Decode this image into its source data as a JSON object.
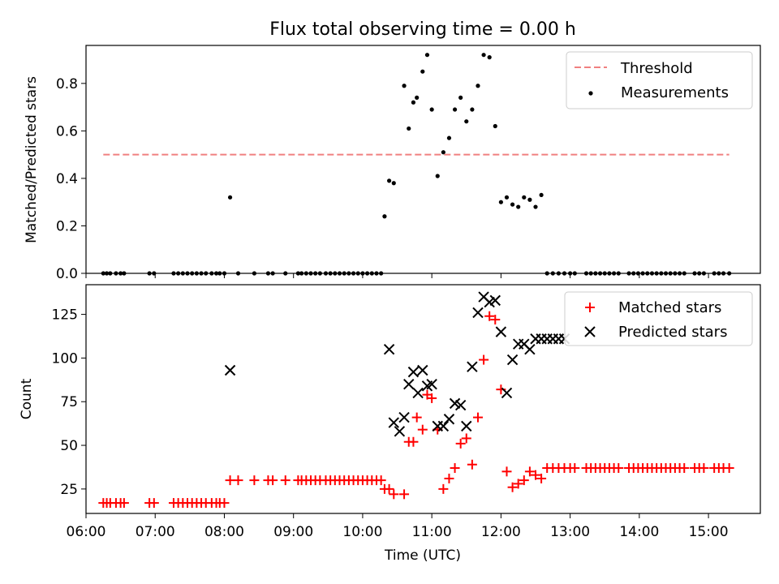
{
  "figure": {
    "title": "Flux total observing time = 0.00 h"
  },
  "chart_data": [
    {
      "type": "scatter",
      "ylabel": "Matched/Predicted stars",
      "xlim": [
        "06:00",
        "15:45"
      ],
      "ylim": [
        0,
        0.96
      ],
      "yticks": [
        "0.0",
        "0.2",
        "0.4",
        "0.6",
        "0.8"
      ],
      "yticks_values": [
        0,
        0.2,
        0.4,
        0.6,
        0.8
      ],
      "legend": {
        "placement": "top-right",
        "entries": [
          "Threshold",
          "Measurements"
        ]
      },
      "threshold": {
        "name": "Threshold",
        "value": 0.5,
        "x_start": "06:15",
        "x_end": "15:18",
        "color": "#f08080"
      },
      "measurements": {
        "name": "Measurements",
        "color": "#000000",
        "x": [
          "06:15",
          "06:18",
          "06:21",
          "06:26",
          "06:30",
          "06:33",
          "06:55",
          "06:59",
          "07:16",
          "07:20",
          "07:24",
          "07:28",
          "07:32",
          "07:36",
          "07:40",
          "07:44",
          "07:49",
          "07:53",
          "07:56",
          "08:00",
          "08:05",
          "08:12",
          "08:26",
          "08:38",
          "08:42",
          "08:53",
          "09:04",
          "09:07",
          "09:11",
          "09:15",
          "09:19",
          "09:23",
          "09:28",
          "09:32",
          "09:36",
          "09:40",
          "09:44",
          "09:48",
          "09:52",
          "09:56",
          "10:00",
          "10:04",
          "10:08",
          "10:12",
          "10:16",
          "10:19",
          "10:23",
          "10:27",
          "10:36",
          "10:40",
          "10:44",
          "10:47",
          "10:52",
          "10:56",
          "11:00",
          "11:05",
          "11:10",
          "11:15",
          "11:20",
          "11:25",
          "11:30",
          "11:35",
          "11:40",
          "11:45",
          "11:50",
          "11:55",
          "12:00",
          "12:05",
          "12:10",
          "12:15",
          "12:20",
          "12:25",
          "12:30",
          "12:35",
          "12:40",
          "12:45",
          "12:50",
          "12:55",
          "13:00",
          "13:04",
          "13:14",
          "13:18",
          "13:22",
          "13:26",
          "13:30",
          "13:34",
          "13:38",
          "13:42",
          "13:51",
          "13:55",
          "13:59",
          "14:03",
          "14:07",
          "14:11",
          "14:15",
          "14:19",
          "14:23",
          "14:27",
          "14:31",
          "14:35",
          "14:39",
          "14:48",
          "14:52",
          "14:56",
          "15:05",
          "15:09",
          "15:13",
          "15:18"
        ],
        "y": [
          0,
          0,
          0,
          0,
          0,
          0,
          0,
          0,
          0,
          0,
          0,
          0,
          0,
          0,
          0,
          0,
          0,
          0,
          0,
          0,
          0.32,
          0,
          0,
          0,
          0,
          0,
          0,
          0,
          0,
          0,
          0,
          0,
          0,
          0,
          0,
          0,
          0,
          0,
          0,
          0,
          0,
          0,
          0,
          0,
          0,
          0.24,
          0.39,
          0.38,
          0.79,
          0.61,
          0.72,
          0.74,
          0.85,
          0.92,
          0.69,
          0.41,
          0.51,
          0.57,
          0.69,
          0.74,
          0.64,
          0.69,
          0.79,
          0.92,
          0.91,
          0.62,
          0.3,
          0.32,
          0.29,
          0.28,
          0.32,
          0.31,
          0.28,
          0.33,
          0,
          0,
          0,
          0,
          0,
          0,
          0,
          0,
          0,
          0,
          0,
          0,
          0,
          0,
          0,
          0,
          0,
          0,
          0,
          0,
          0,
          0,
          0,
          0,
          0,
          0,
          0,
          0,
          0,
          0,
          0,
          0,
          0,
          0
        ]
      }
    },
    {
      "type": "scatter",
      "xlabel": "Time (UTC)",
      "ylabel": "Count",
      "xlim": [
        "06:00",
        "15:45"
      ],
      "ylim": [
        11,
        142
      ],
      "xticks": [
        "06:00",
        "07:00",
        "08:00",
        "09:00",
        "10:00",
        "11:00",
        "12:00",
        "13:00",
        "14:00",
        "15:00"
      ],
      "yticks": [
        "25",
        "50",
        "75",
        "100",
        "125"
      ],
      "yticks_values": [
        25,
        50,
        75,
        100,
        125
      ],
      "legend": {
        "placement": "top-right",
        "entries": [
          "Matched stars",
          "Predicted stars"
        ]
      },
      "series": [
        {
          "name": "Matched stars",
          "marker": "+",
          "color": "#ff0000",
          "x": [
            "06:15",
            "06:18",
            "06:21",
            "06:26",
            "06:30",
            "06:33",
            "06:55",
            "06:59",
            "07:16",
            "07:20",
            "07:24",
            "07:28",
            "07:32",
            "07:36",
            "07:40",
            "07:44",
            "07:49",
            "07:53",
            "07:56",
            "08:00",
            "08:05",
            "08:12",
            "08:26",
            "08:38",
            "08:42",
            "08:53",
            "09:04",
            "09:07",
            "09:11",
            "09:15",
            "09:19",
            "09:23",
            "09:28",
            "09:32",
            "09:36",
            "09:40",
            "09:44",
            "09:48",
            "09:52",
            "09:56",
            "10:00",
            "10:04",
            "10:08",
            "10:12",
            "10:16",
            "10:19",
            "10:23",
            "10:27",
            "10:36",
            "10:40",
            "10:44",
            "10:47",
            "10:52",
            "10:56",
            "11:00",
            "11:05",
            "11:10",
            "11:15",
            "11:20",
            "11:25",
            "11:30",
            "11:35",
            "11:40",
            "11:45",
            "11:50",
            "11:55",
            "12:00",
            "12:05",
            "12:10",
            "12:15",
            "12:20",
            "12:25",
            "12:30",
            "12:35",
            "12:40",
            "12:45",
            "12:50",
            "12:55",
            "13:00",
            "13:04",
            "13:14",
            "13:18",
            "13:22",
            "13:26",
            "13:30",
            "13:34",
            "13:38",
            "13:42",
            "13:51",
            "13:55",
            "13:59",
            "14:03",
            "14:07",
            "14:11",
            "14:15",
            "14:19",
            "14:23",
            "14:27",
            "14:31",
            "14:35",
            "14:39",
            "14:48",
            "14:52",
            "14:56",
            "15:05",
            "15:09",
            "15:13",
            "15:18"
          ],
          "y": [
            17,
            17,
            17,
            17,
            17,
            17,
            17,
            17,
            17,
            17,
            17,
            17,
            17,
            17,
            17,
            17,
            17,
            17,
            17,
            17,
            30,
            30,
            30,
            30,
            30,
            30,
            30,
            30,
            30,
            30,
            30,
            30,
            30,
            30,
            30,
            30,
            30,
            30,
            30,
            30,
            30,
            30,
            30,
            30,
            30,
            25,
            25,
            22,
            22,
            52,
            52,
            66,
            59,
            79,
            77,
            59,
            25,
            31,
            37,
            51,
            54,
            39,
            66,
            99,
            124,
            122,
            82,
            35,
            26,
            28,
            30,
            35,
            33,
            31,
            37,
            37,
            37,
            37,
            37,
            37,
            37,
            37,
            37,
            37,
            37,
            37,
            37,
            37,
            37,
            37,
            37,
            37,
            37,
            37,
            37,
            37,
            37,
            37,
            37,
            37,
            37,
            37,
            37,
            37,
            37,
            37,
            37,
            37
          ]
        },
        {
          "name": "Predicted stars",
          "marker": "x",
          "color": "#000000",
          "x": [
            "08:05",
            "10:23",
            "10:27",
            "10:32",
            "10:36",
            "10:40",
            "10:44",
            "10:48",
            "10:52",
            "10:56",
            "11:00",
            "11:05",
            "11:10",
            "11:15",
            "11:20",
            "11:25",
            "11:30",
            "11:35",
            "11:40",
            "11:45",
            "11:50",
            "11:55",
            "12:00",
            "12:05",
            "12:10",
            "12:15",
            "12:20",
            "12:25",
            "12:30",
            "12:35",
            "12:40",
            "12:45",
            "12:50",
            "12:55"
          ],
          "y": [
            93,
            105,
            63,
            58,
            66,
            85,
            92,
            80,
            93,
            84,
            85,
            61,
            61,
            65,
            74,
            73,
            61,
            95,
            126,
            135,
            132,
            133,
            115,
            80,
            99,
            108,
            108,
            105,
            111,
            111,
            111,
            111,
            111,
            111
          ]
        }
      ]
    }
  ]
}
